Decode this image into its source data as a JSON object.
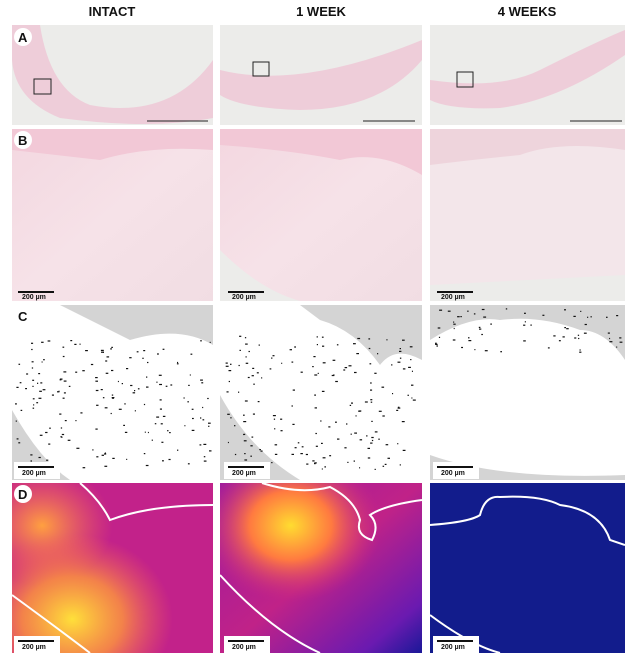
{
  "columns": [
    "INTACT",
    "1 WEEK",
    "4 WEEKS"
  ],
  "rows": [
    "A",
    "B",
    "C",
    "D"
  ],
  "scale_bar_label": "200 µm"
}
